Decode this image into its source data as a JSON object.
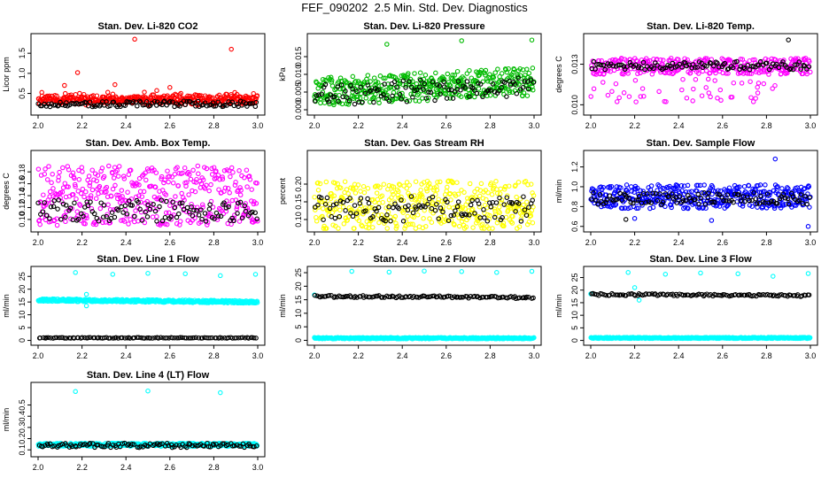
{
  "title": "FEF_090202  2.5 Min. Std. Dev. Diagnostics",
  "colors": {
    "red": "#ff0000",
    "green": "#00bb00",
    "magenta": "#ff00ff",
    "yellow": "#ffff00",
    "blue": "#0000ff",
    "cyan": "#00ffff",
    "black": "#000000"
  },
  "chart_data": [
    {
      "type": "scatter",
      "title": "Stan. Dev. Li-820 CO2",
      "ylabel": "Licor ppm",
      "xlim": [
        2.0,
        3.0
      ],
      "ylim": [
        0.05,
        1.9
      ],
      "xticks": [
        "2.0",
        "2.2",
        "2.4",
        "2.6",
        "2.8",
        "3.0"
      ],
      "yticks": [
        "0.5",
        "1.0",
        "1.5"
      ],
      "series": [
        {
          "color": "red",
          "n": 400,
          "base": 0.3,
          "spread": 0.12,
          "pw": 3,
          "outliers": [
            [
              2.18,
              1.02
            ],
            [
              2.44,
              1.85
            ],
            [
              2.88,
              1.6
            ],
            [
              2.35,
              0.72
            ],
            [
              2.6,
              0.65
            ],
            [
              2.12,
              0.7
            ]
          ],
          "seed": 11
        },
        {
          "color": "black",
          "n": 120,
          "base": 0.24,
          "spread": 0.07,
          "pw": 1,
          "seed": 12
        }
      ]
    },
    {
      "type": "scatter",
      "title": "Stan. Dev. Li-820 Pressure",
      "ylabel": "kPa",
      "xlim": [
        2.0,
        3.0
      ],
      "ylim": [
        -0.0005,
        0.0205
      ],
      "xticks": [
        "2.0",
        "2.2",
        "2.4",
        "2.6",
        "2.8",
        "3.0"
      ],
      "yticks": [
        "0.000",
        "0.005",
        "0.010",
        "0.015"
      ],
      "series": [
        {
          "color": "green",
          "n": 420,
          "base": 0.005,
          "spread": 0.004,
          "pw": 1,
          "trend": 0.003,
          "outliers": [
            [
              2.33,
              0.0185
            ],
            [
              2.67,
              0.0195
            ],
            [
              2.99,
              0.0197
            ]
          ],
          "seed": 21
        },
        {
          "color": "black",
          "n": 110,
          "base": 0.004,
          "spread": 0.003,
          "pw": 1,
          "trend": 0.003,
          "seed": 22
        }
      ]
    },
    {
      "type": "scatter",
      "title": "Stan. Dev. Li-820 Temp.",
      "ylabel": "degrees C",
      "xlim": [
        2.0,
        3.0
      ],
      "ylim": [
        0.0095,
        0.015
      ],
      "xticks": [
        "2.0",
        "2.2",
        "2.4",
        "2.6",
        "2.8",
        "3.0"
      ],
      "yticks": [
        "0.010",
        "0.013"
      ],
      "series": [
        {
          "color": "magenta",
          "n": 380,
          "base": 0.01285,
          "spread": 0.0006,
          "pw": 1,
          "low": true,
          "seed": 31
        },
        {
          "color": "black",
          "n": 110,
          "base": 0.0129,
          "spread": 0.0003,
          "pw": 1,
          "outliers": [
            [
              2.9,
              0.0148
            ]
          ],
          "seed": 32
        }
      ]
    },
    {
      "type": "scatter",
      "title": "Stan. Dev. Amb. Box Temp.",
      "ylabel": "degrees C",
      "xlim": [
        2.0,
        3.0
      ],
      "ylim": [
        0.085,
        0.21
      ],
      "xticks": [
        "2.0",
        "2.2",
        "2.4",
        "2.6",
        "2.8",
        "3.0"
      ],
      "yticks": [
        "0.10",
        "0.12",
        "0.14",
        "0.16",
        "0.18"
      ],
      "series": [
        {
          "color": "magenta",
          "n": 420,
          "base": 0.14,
          "spread": 0.05,
          "pw": 1,
          "seed": 41
        },
        {
          "color": "black",
          "n": 110,
          "base": 0.115,
          "spread": 0.018,
          "pw": 1,
          "seed": 42
        }
      ]
    },
    {
      "type": "scatter",
      "title": "Stan. Dev. Gas Stream RH",
      "ylabel": "percent",
      "xlim": [
        2.0,
        3.0
      ],
      "ylim": [
        0.075,
        0.285
      ],
      "xticks": [
        "2.0",
        "2.2",
        "2.4",
        "2.6",
        "2.8",
        "3.0"
      ],
      "yticks": [
        "0.10",
        "0.15",
        "0.20"
      ],
      "series": [
        {
          "color": "yellow",
          "n": 420,
          "base": 0.14,
          "spread": 0.07,
          "pw": 1,
          "seed": 51
        },
        {
          "color": "black",
          "n": 110,
          "base": 0.13,
          "spread": 0.035,
          "pw": 1,
          "seed": 52
        }
      ]
    },
    {
      "type": "scatter",
      "title": "Stan. Dev. Sample Flow",
      "ylabel": "ml/min",
      "xlim": [
        2.0,
        3.0
      ],
      "ylim": [
        0.58,
        1.33
      ],
      "xticks": [
        "2.0",
        "2.2",
        "2.4",
        "2.6",
        "2.8",
        "3.0"
      ],
      "yticks": [
        "0.6",
        "0.8",
        "1.0",
        "1.2"
      ],
      "series": [
        {
          "color": "blue",
          "n": 420,
          "base": 0.9,
          "spread": 0.12,
          "pw": 1,
          "outliers": [
            [
              2.84,
              1.28
            ],
            [
              2.99,
              0.6
            ],
            [
              2.2,
              0.68
            ],
            [
              2.55,
              0.66
            ]
          ],
          "seed": 61
        },
        {
          "color": "black",
          "n": 110,
          "base": 0.88,
          "spread": 0.06,
          "pw": 1,
          "outliers": [
            [
              2.16,
              0.67
            ]
          ],
          "seed": 62
        }
      ]
    },
    {
      "type": "scatter",
      "title": "Stan. Dev. Line 1 Flow",
      "ylabel": "ml/min",
      "xlim": [
        2.0,
        3.0
      ],
      "ylim": [
        -0.5,
        27.5
      ],
      "xticks": [
        "2.0",
        "2.2",
        "2.4",
        "2.6",
        "2.8",
        "3.0"
      ],
      "yticks": [
        "0",
        "5",
        "10",
        "15",
        "20",
        "25"
      ],
      "series": [
        {
          "color": "cyan",
          "n": 420,
          "base": 15.8,
          "spread": 0.5,
          "pw": 1,
          "trend": -0.8,
          "outliers": [
            [
              2.17,
              26.5
            ],
            [
              2.34,
              25.8
            ],
            [
              2.5,
              26.2
            ],
            [
              2.67,
              26.0
            ],
            [
              2.83,
              25.3
            ],
            [
              2.99,
              25.8
            ],
            [
              2.22,
              13.5
            ],
            [
              2.22,
              18.0
            ]
          ],
          "seed": 71
        },
        {
          "color": "black",
          "n": 110,
          "base": 1.0,
          "spread": 0.15,
          "pw": 1,
          "seed": 72
        }
      ]
    },
    {
      "type": "scatter",
      "title": "Stan. Dev. Line 2 Flow",
      "ylabel": "ml/min",
      "xlim": [
        2.0,
        3.0
      ],
      "ylim": [
        -0.5,
        26.0
      ],
      "xticks": [
        "2.0",
        "2.2",
        "2.4",
        "2.6",
        "2.8",
        "3.0"
      ],
      "yticks": [
        "0",
        "5",
        "10",
        "15",
        "20",
        "25"
      ],
      "series": [
        {
          "color": "cyan",
          "n": 420,
          "base": 0.8,
          "spread": 0.25,
          "pw": 1,
          "outliers": [
            [
              2.17,
              25.5
            ],
            [
              2.34,
              25.2
            ],
            [
              2.5,
              25.6
            ],
            [
              2.67,
              25.4
            ],
            [
              2.83,
              25.1
            ],
            [
              2.99,
              25.5
            ],
            [
              2.0,
              16.8
            ]
          ],
          "seed": 81
        },
        {
          "color": "black",
          "n": 120,
          "base": 16.3,
          "spread": 0.4,
          "pw": 1,
          "trend": -0.5,
          "seed": 82
        }
      ]
    },
    {
      "type": "scatter",
      "title": "Stan. Dev. Line 3 Flow",
      "ylabel": "ml/min",
      "xlim": [
        2.0,
        3.0
      ],
      "ylim": [
        -0.5,
        28.0
      ],
      "xticks": [
        "2.0",
        "2.2",
        "2.4",
        "2.6",
        "2.8",
        "3.0"
      ],
      "yticks": [
        "0",
        "5",
        "10",
        "15",
        "20",
        "25"
      ],
      "series": [
        {
          "color": "cyan",
          "n": 420,
          "base": 1.0,
          "spread": 0.25,
          "pw": 1,
          "outliers": [
            [
              2.17,
              27.0
            ],
            [
              2.34,
              26.3
            ],
            [
              2.5,
              26.8
            ],
            [
              2.67,
              26.5
            ],
            [
              2.83,
              25.5
            ],
            [
              2.99,
              26.6
            ],
            [
              2.0,
              18.5
            ],
            [
              2.2,
              21.0
            ],
            [
              2.22,
              16.0
            ]
          ],
          "seed": 91
        },
        {
          "color": "black",
          "n": 120,
          "base": 18.3,
          "spread": 0.4,
          "pw": 1,
          "trend": -0.5,
          "seed": 92
        }
      ]
    },
    {
      "type": "scatter",
      "title": "Stan. Dev. Line 4 (LT) Flow",
      "ylabel": "ml/min",
      "xlim": [
        2.0,
        3.0
      ],
      "ylim": [
        0.07,
        0.67
      ],
      "xticks": [
        "2.0",
        "2.2",
        "2.4",
        "2.6",
        "2.8",
        "3.0"
      ],
      "yticks": [
        "0.1",
        "0.2",
        "0.3",
        "0.4",
        "0.5"
      ],
      "series": [
        {
          "color": "cyan",
          "n": 420,
          "base": 0.145,
          "spread": 0.015,
          "pw": 1,
          "outliers": [
            [
              2.17,
              0.62
            ],
            [
              2.5,
              0.625
            ],
            [
              2.83,
              0.61
            ]
          ],
          "seed": 101
        },
        {
          "color": "black",
          "n": 110,
          "base": 0.14,
          "spread": 0.02,
          "pw": 1,
          "seed": 102
        }
      ]
    }
  ]
}
